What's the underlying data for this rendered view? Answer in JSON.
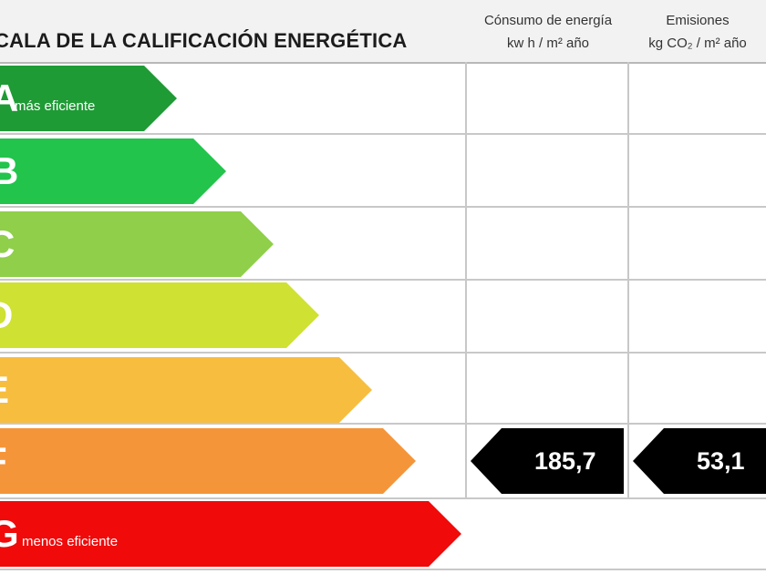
{
  "scale": {
    "title": "CALA DE LA CALIFICACIÓN ENERGÉTICA"
  },
  "columns": {
    "energy": {
      "line1": "Cónsumo de energía",
      "line2": "kw h / m² año"
    },
    "emissions": {
      "line1": "Emisiones",
      "line2": "kg CO₂ / m² año"
    }
  },
  "ratings": [
    {
      "letter": "A",
      "note": "más eficiente",
      "color": "#1e9b35"
    },
    {
      "letter": "B",
      "note": "",
      "color": "#22c44c"
    },
    {
      "letter": "C",
      "note": "",
      "color": "#8fcf4a"
    },
    {
      "letter": "D",
      "note": "",
      "color": "#cfe132"
    },
    {
      "letter": "E",
      "note": "",
      "color": "#f7bd3e"
    },
    {
      "letter": "F",
      "note": "",
      "color": "#f5953a"
    },
    {
      "letter": "G",
      "note": "menos eficiente",
      "color": "#f00a0a"
    }
  ],
  "indicators": {
    "rating": "F",
    "energy_value": "185,7",
    "emissions_value": "53,1",
    "color": "#000000"
  }
}
